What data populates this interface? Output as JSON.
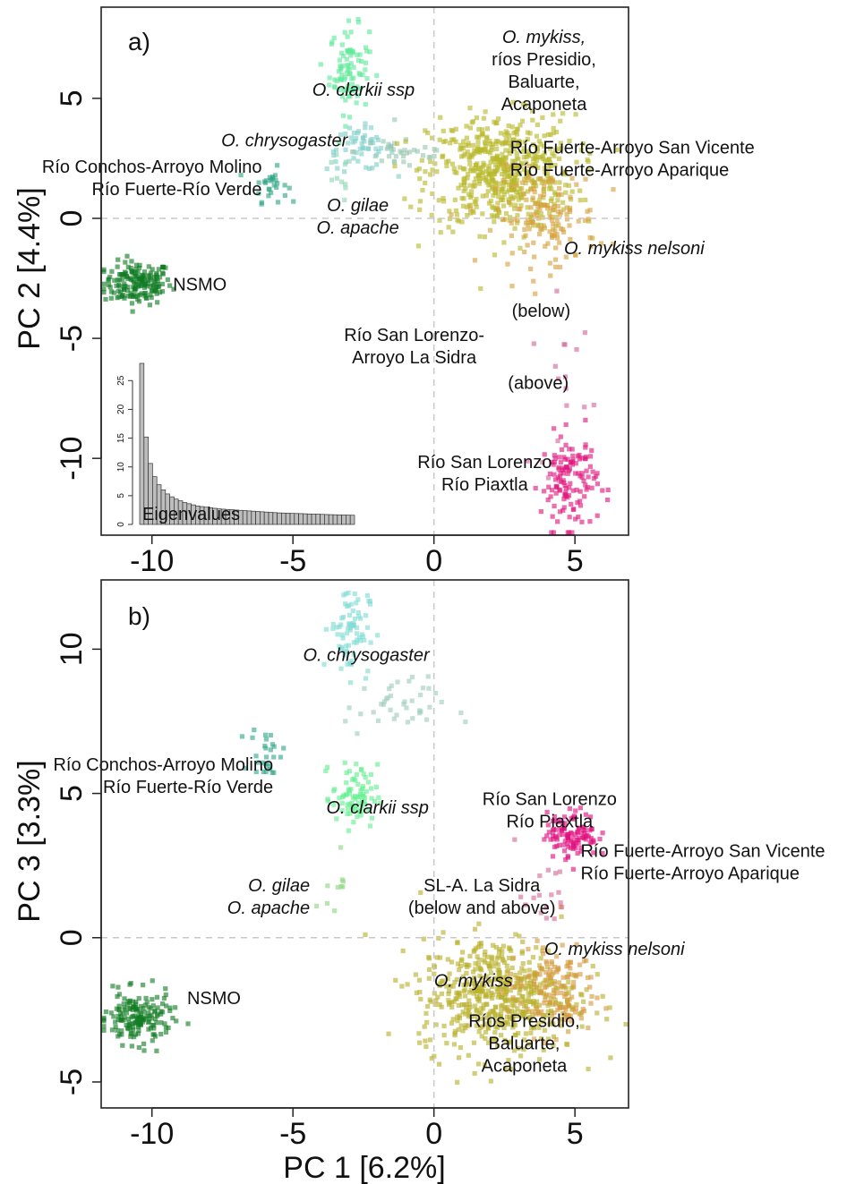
{
  "chart_data": [
    {
      "type": "scatter",
      "panel_label": "a)",
      "xlabel": "",
      "ylabel": "PC 2 [4.4%]",
      "xlim": [
        -11.8,
        6.9
      ],
      "ylim": [
        -13.2,
        8.8
      ],
      "xticks": [
        "-10",
        "-5",
        "0",
        "5"
      ],
      "yticks": [
        "-10",
        "-5",
        "0",
        "5"
      ],
      "reference_lines": {
        "x": 0,
        "y": 0
      },
      "clusters": [
        {
          "group": "NSMO",
          "center": [
            -10.5,
            -2.7
          ],
          "spread": [
            0.6,
            0.45
          ],
          "n": 170,
          "color": "#0f7a22"
        },
        {
          "group": "Río Conchos-Arroyo Molino / Río Fuerte-Río Verde",
          "center": [
            -5.8,
            1.4
          ],
          "spread": [
            0.3,
            0.35
          ],
          "n": 28,
          "color": "#2fa585"
        },
        {
          "group": "O. clarkii ssp",
          "center": [
            -3.0,
            6.2
          ],
          "spread": [
            0.35,
            0.9
          ],
          "n": 90,
          "color": "#5fe89a"
        },
        {
          "group": "O. chrysogaster",
          "center": [
            -2.6,
            2.9
          ],
          "spread": [
            0.6,
            0.45
          ],
          "n": 55,
          "color": "#7fcfca"
        },
        {
          "group": "O. chrysogaster",
          "center": [
            -1.0,
            2.8
          ],
          "spread": [
            0.9,
            0.4
          ],
          "n": 35,
          "color": "#9ac6b2"
        },
        {
          "group": "O. gilae / O. apache",
          "center": [
            -3.4,
            1.6
          ],
          "spread": [
            0.25,
            0.5
          ],
          "n": 10,
          "color": "#8ed6b4"
        },
        {
          "group": "O. mykiss (ríos Presidio, Baluarte, Acaponeta)",
          "center": [
            2.4,
            1.9
          ],
          "spread": [
            1.3,
            1.2
          ],
          "n": 560,
          "color": "#b8b82a"
        },
        {
          "group": "O. mykiss nelsoni",
          "center": [
            4.0,
            0.0
          ],
          "spread": [
            0.9,
            1.0
          ],
          "n": 140,
          "color": "#d6a03c"
        },
        {
          "group": "Río San Lorenzo-Arroyo La Sidra",
          "center": [
            4.6,
            -7.0
          ],
          "spread": [
            0.6,
            1.8
          ],
          "n": 18,
          "color": "#d4659a"
        },
        {
          "group": "Río San Lorenzo / Río Piaxtla",
          "center": [
            4.8,
            -11.0
          ],
          "spread": [
            0.5,
            1.0
          ],
          "n": 130,
          "color": "#e0157e"
        }
      ],
      "inset": {
        "type": "bar",
        "label": "Eigenvalues",
        "yticks": [
          "0",
          "5",
          "10",
          "15",
          "20",
          "25"
        ],
        "ylim": [
          0,
          28
        ],
        "values": [
          28.5,
          15.2,
          10.6,
          8.3,
          6.9,
          6.0,
          5.3,
          4.8,
          4.4,
          4.1,
          3.8,
          3.6,
          3.4,
          3.2,
          3.1,
          3.0,
          2.9,
          2.8,
          2.7,
          2.65,
          2.6,
          2.55,
          2.5,
          2.45,
          2.4,
          2.35,
          2.3,
          2.25,
          2.2,
          2.15,
          2.1,
          2.05,
          2.0,
          1.98,
          1.95,
          1.92,
          1.9,
          1.88,
          1.85,
          1.82,
          1.8,
          1.78,
          1.75,
          1.72,
          1.7,
          1.68,
          1.66,
          1.64,
          1.62,
          1.6
        ]
      },
      "annotations": [
        {
          "lines": [
            "O. clarkii ssp"
          ],
          "italic": [
            true
          ],
          "at": [
            -2.5,
            5.1
          ],
          "align": "middle"
        },
        {
          "lines": [
            "O. mykiss,",
            "ríos Presidio,",
            "Baluarte,",
            "Acaponeta"
          ],
          "italic": [
            true,
            false,
            false,
            false
          ],
          "at": [
            3.9,
            7.3
          ],
          "align": "middle"
        },
        {
          "lines": [
            "O. chrysogaster"
          ],
          "italic": [
            true
          ],
          "at": [
            -5.3,
            3.0
          ],
          "align": "middle"
        },
        {
          "lines": [
            "Río Fuerte-Arroyo San Vicente",
            "Río Fuerte-Arroyo Aparique"
          ],
          "italic": [
            false,
            false
          ],
          "at": [
            2.7,
            2.7
          ],
          "align": "start"
        },
        {
          "lines": [
            "Río Conchos-Arroyo Molino",
            "Río Fuerte-Río Verde"
          ],
          "italic": [
            false,
            false
          ],
          "at": [
            -6.1,
            1.9
          ],
          "align": "end"
        },
        {
          "lines": [
            "O. gilae",
            "O. apache"
          ],
          "italic": [
            true,
            true
          ],
          "at": [
            -2.7,
            0.3
          ],
          "align": "middle"
        },
        {
          "lines": [
            "O. mykiss nelsoni"
          ],
          "italic": [
            true
          ],
          "at": [
            7.1,
            -1.5
          ],
          "align": "middle"
        },
        {
          "lines": [
            "NSMO"
          ],
          "italic": [
            false
          ],
          "at": [
            -8.3,
            -3.0
          ],
          "align": "middle"
        },
        {
          "lines": [
            "(below)"
          ],
          "italic": [
            false
          ],
          "at": [
            3.8,
            -4.1
          ],
          "align": "middle"
        },
        {
          "lines": [
            "Río San Lorenzo-",
            "Arroyo La Sidra"
          ],
          "italic": [
            false,
            false
          ],
          "at": [
            -0.7,
            -5.1
          ],
          "align": "middle"
        },
        {
          "lines": [
            "(above)"
          ],
          "italic": [
            false
          ],
          "at": [
            3.7,
            -7.1
          ],
          "align": "middle"
        },
        {
          "lines": [
            "Río San Lorenzo",
            "Río Piaxtla"
          ],
          "italic": [
            false,
            false
          ],
          "at": [
            1.8,
            -10.4
          ],
          "align": "middle"
        }
      ]
    },
    {
      "type": "scatter",
      "panel_label": "b)",
      "xlabel": "PC 1 [6.2%]",
      "ylabel": "PC 3 [3.3%]",
      "xlim": [
        -11.8,
        6.9
      ],
      "ylim": [
        -5.9,
        12.4
      ],
      "xticks": [
        "-10",
        "-5",
        "0",
        "5"
      ],
      "yticks": [
        "-5",
        "0",
        "5",
        "10"
      ],
      "reference_lines": {
        "x": 0,
        "y": 0
      },
      "clusters": [
        {
          "group": "NSMO",
          "center": [
            -10.5,
            -2.8
          ],
          "spread": [
            0.6,
            0.45
          ],
          "n": 170,
          "color": "#127d24"
        },
        {
          "group": "Río Conchos-Arroyo Molino / Río Fuerte-Río Verde",
          "center": [
            -5.9,
            6.4
          ],
          "spread": [
            0.3,
            0.45
          ],
          "n": 28,
          "color": "#32a88a"
        },
        {
          "group": "O. chrysogaster",
          "center": [
            -3.0,
            10.7
          ],
          "spread": [
            0.35,
            0.8
          ],
          "n": 75,
          "color": "#7fdcd4"
        },
        {
          "group": "O. chrysogaster",
          "center": [
            -1.4,
            8.0
          ],
          "spread": [
            0.9,
            0.5
          ],
          "n": 40,
          "color": "#9fcdbb"
        },
        {
          "group": "O. clarkii ssp",
          "center": [
            -2.8,
            4.9
          ],
          "spread": [
            0.4,
            0.55
          ],
          "n": 80,
          "color": "#62ef8e"
        },
        {
          "group": "O. gilae / O. apache",
          "center": [
            -3.5,
            2.0
          ],
          "spread": [
            0.2,
            0.6
          ],
          "n": 10,
          "color": "#8bd680"
        },
        {
          "group": "O. mykiss (Ríos Presidio, Baluarte, Acaponeta)",
          "center": [
            2.3,
            -2.0
          ],
          "spread": [
            1.4,
            1.0
          ],
          "n": 560,
          "color": "#b8b02a"
        },
        {
          "group": "O. mykiss nelsoni",
          "center": [
            4.2,
            -1.8
          ],
          "spread": [
            0.8,
            0.8
          ],
          "n": 130,
          "color": "#d69a3f"
        },
        {
          "group": "SL-A. La Sidra (below and above)",
          "center": [
            3.9,
            1.5
          ],
          "spread": [
            0.5,
            0.9
          ],
          "n": 18,
          "color": "#d46a98"
        },
        {
          "group": "Río San Lorenzo / Río Piaxtla",
          "center": [
            4.9,
            3.6
          ],
          "spread": [
            0.45,
            0.4
          ],
          "n": 110,
          "color": "#e01080"
        }
      ],
      "annotations": [
        {
          "lines": [
            "O. chrysogaster"
          ],
          "italic": [
            true
          ],
          "at": [
            -2.4,
            9.6
          ],
          "align": "middle"
        },
        {
          "lines": [
            "Río Conchos-Arroyo Molino",
            "Río Fuerte-Río Verde"
          ],
          "italic": [
            false,
            false
          ],
          "at": [
            -5.7,
            5.8
          ],
          "align": "end"
        },
        {
          "lines": [
            "O. clarkii ssp"
          ],
          "italic": [
            true
          ],
          "at": [
            -2.0,
            4.3
          ],
          "align": "middle"
        },
        {
          "lines": [
            "Río San Lorenzo",
            "Río Piaxtla"
          ],
          "italic": [
            false,
            false
          ],
          "at": [
            4.1,
            4.6
          ],
          "align": "middle"
        },
        {
          "lines": [
            "Río Fuerte-Arroyo San Vicente",
            "Río Fuerte-Arroyo Aparique"
          ],
          "italic": [
            false,
            false
          ],
          "at": [
            5.2,
            2.8
          ],
          "align": "start"
        },
        {
          "lines": [
            "O. gilae",
            "O. apache"
          ],
          "italic": [
            true,
            true
          ],
          "at": [
            -4.4,
            1.6
          ],
          "align": "end"
        },
        {
          "lines": [
            "SL-A. La Sidra",
            "(below and above)"
          ],
          "italic": [
            false,
            false
          ],
          "at": [
            1.7,
            1.6
          ],
          "align": "middle"
        },
        {
          "lines": [
            "O. mykiss nelsoni"
          ],
          "italic": [
            true
          ],
          "at": [
            6.4,
            -0.6
          ],
          "align": "middle"
        },
        {
          "lines": [
            "O. mykiss"
          ],
          "italic": [
            true
          ],
          "at": [
            1.4,
            -1.7
          ],
          "align": "middle"
        },
        {
          "lines": [
            "NSMO"
          ],
          "italic": [
            false
          ],
          "at": [
            -7.8,
            -2.3
          ],
          "align": "middle"
        },
        {
          "lines": [
            "Ríos Presidio,",
            "Baluarte,",
            "Acaponeta"
          ],
          "italic": [
            false,
            false,
            false
          ],
          "at": [
            3.2,
            -3.1
          ],
          "align": "middle"
        }
      ]
    }
  ]
}
